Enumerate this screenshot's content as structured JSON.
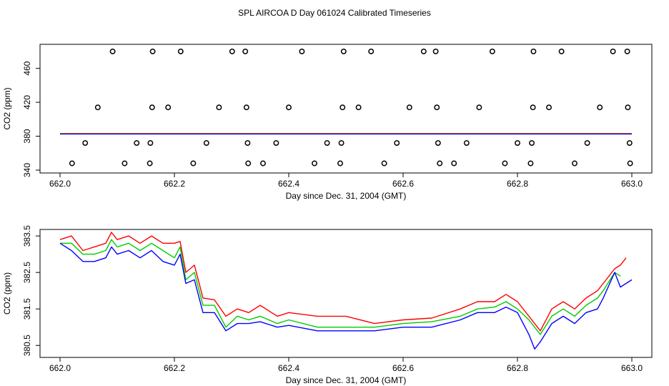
{
  "figure_title": "SPL AIRCOA D  Day 061024  Calibrated Timeseries",
  "chart_data": [
    {
      "type": "scatter",
      "xlabel": "Day since Dec. 31, 2004 (GMT)",
      "ylabel": "CO2 (ppm)",
      "xlim": [
        662.0,
        663.0
      ],
      "ylim": [
        340,
        485
      ],
      "xticks": [
        "662.0",
        "662.2",
        "662.4",
        "662.6",
        "662.8",
        "663.0"
      ],
      "xtick_values": [
        662.0,
        662.2,
        662.4,
        662.6,
        662.8,
        663.0
      ],
      "yticks": [
        "340",
        "380",
        "420",
        "460"
      ],
      "ytick_values": [
        340,
        380,
        420,
        460
      ],
      "points": [
        [
          662.092,
          480
        ],
        [
          662.162,
          480
        ],
        [
          662.211,
          480
        ],
        [
          662.301,
          480
        ],
        [
          662.324,
          480
        ],
        [
          662.423,
          480
        ],
        [
          662.496,
          480
        ],
        [
          662.544,
          480
        ],
        [
          662.636,
          480
        ],
        [
          662.657,
          480
        ],
        [
          662.756,
          480
        ],
        [
          662.828,
          480
        ],
        [
          662.877,
          480
        ],
        [
          662.967,
          480
        ],
        [
          662.992,
          480
        ],
        [
          662.066,
          414
        ],
        [
          662.161,
          414
        ],
        [
          662.189,
          414
        ],
        [
          662.278,
          414
        ],
        [
          662.326,
          414
        ],
        [
          662.4,
          414
        ],
        [
          662.494,
          414
        ],
        [
          662.522,
          414
        ],
        [
          662.611,
          414
        ],
        [
          662.659,
          414
        ],
        [
          662.733,
          414
        ],
        [
          662.827,
          414
        ],
        [
          662.855,
          414
        ],
        [
          662.944,
          414
        ],
        [
          662.993,
          414
        ],
        [
          662.044,
          372
        ],
        [
          662.134,
          372
        ],
        [
          662.158,
          372
        ],
        [
          662.256,
          372
        ],
        [
          662.328,
          372
        ],
        [
          662.378,
          372
        ],
        [
          662.467,
          372
        ],
        [
          662.492,
          372
        ],
        [
          662.589,
          372
        ],
        [
          662.661,
          372
        ],
        [
          662.711,
          372
        ],
        [
          662.8,
          372
        ],
        [
          662.825,
          372
        ],
        [
          662.922,
          372
        ],
        [
          662.996,
          372
        ],
        [
          662.021,
          348
        ],
        [
          662.113,
          348
        ],
        [
          662.157,
          348
        ],
        [
          662.233,
          348
        ],
        [
          662.329,
          348
        ],
        [
          662.355,
          348
        ],
        [
          662.445,
          348
        ],
        [
          662.49,
          348
        ],
        [
          662.567,
          348
        ],
        [
          662.664,
          348
        ],
        [
          662.689,
          348
        ],
        [
          662.778,
          348
        ],
        [
          662.823,
          348
        ],
        [
          662.9,
          348
        ],
        [
          662.997,
          348
        ]
      ],
      "lines": [
        {
          "name": "red",
          "color": "#ff0000",
          "y": 383.2
        },
        {
          "name": "green",
          "color": "#00cc00",
          "y": 382.7
        },
        {
          "name": "blue",
          "color": "#0000ff",
          "y": 382.5
        }
      ]
    },
    {
      "type": "line",
      "xlabel": "Day since Dec. 31, 2004 (GMT)",
      "ylabel": "CO2 (ppm)",
      "xlim": [
        662.0,
        663.0
      ],
      "ylim": [
        380.25,
        383.6
      ],
      "xticks": [
        "662.0",
        "662.2",
        "662.4",
        "662.6",
        "662.8",
        "663.0"
      ],
      "xtick_values": [
        662.0,
        662.2,
        662.4,
        662.6,
        662.8,
        663.0
      ],
      "yticks": [
        "380.5",
        "381.5",
        "382.5",
        "383.5"
      ],
      "ytick_values": [
        380.5,
        381.5,
        382.5,
        383.5
      ],
      "series": [
        {
          "name": "red",
          "color": "#ff0000",
          "x": [
            662.0,
            662.02,
            662.04,
            662.06,
            662.08,
            662.09,
            662.1,
            662.12,
            662.14,
            662.16,
            662.18,
            662.2,
            662.21,
            662.22,
            662.235,
            662.25,
            662.27,
            662.29,
            662.31,
            662.33,
            662.35,
            662.38,
            662.4,
            662.45,
            662.5,
            662.55,
            662.6,
            662.65,
            662.7,
            662.73,
            662.76,
            662.78,
            662.8,
            662.82,
            662.84,
            662.86,
            662.88,
            662.9,
            662.92,
            662.94,
            662.95,
            662.97,
            662.98,
            662.99
          ],
          "y": [
            383.4,
            383.5,
            383.1,
            383.2,
            383.3,
            383.6,
            383.4,
            383.5,
            383.3,
            383.5,
            383.3,
            383.3,
            383.35,
            382.5,
            382.7,
            381.8,
            381.75,
            381.3,
            381.5,
            381.4,
            381.6,
            381.3,
            381.4,
            381.3,
            381.3,
            381.1,
            381.2,
            381.25,
            381.5,
            381.7,
            381.7,
            381.9,
            381.7,
            381.3,
            380.9,
            381.5,
            381.7,
            381.5,
            381.8,
            382.0,
            382.2,
            382.6,
            382.7,
            382.9
          ]
        },
        {
          "name": "green",
          "color": "#00cc00",
          "x": [
            662.0,
            662.02,
            662.04,
            662.06,
            662.08,
            662.09,
            662.1,
            662.12,
            662.14,
            662.16,
            662.18,
            662.2,
            662.21,
            662.22,
            662.235,
            662.25,
            662.27,
            662.29,
            662.31,
            662.33,
            662.35,
            662.38,
            662.4,
            662.45,
            662.5,
            662.55,
            662.6,
            662.65,
            662.7,
            662.73,
            662.76,
            662.78,
            662.8,
            662.82,
            662.84,
            662.86,
            662.88,
            662.9,
            662.92,
            662.94,
            662.95,
            662.97,
            662.98
          ],
          "y": [
            383.3,
            383.3,
            383.0,
            383.0,
            383.1,
            383.4,
            383.2,
            383.3,
            383.1,
            383.3,
            383.1,
            382.9,
            383.2,
            382.3,
            382.5,
            381.6,
            381.6,
            381.0,
            381.3,
            381.2,
            381.3,
            381.1,
            381.2,
            381.0,
            381.0,
            381.0,
            381.1,
            381.15,
            381.3,
            381.5,
            381.55,
            381.7,
            381.5,
            381.2,
            380.8,
            381.3,
            381.5,
            381.3,
            381.6,
            381.8,
            382.0,
            382.5,
            382.4
          ]
        },
        {
          "name": "blue",
          "color": "#0000ff",
          "x": [
            662.0,
            662.02,
            662.04,
            662.06,
            662.08,
            662.09,
            662.1,
            662.12,
            662.14,
            662.16,
            662.18,
            662.2,
            662.21,
            662.22,
            662.235,
            662.25,
            662.27,
            662.29,
            662.31,
            662.33,
            662.35,
            662.38,
            662.4,
            662.45,
            662.5,
            662.55,
            662.6,
            662.65,
            662.7,
            662.73,
            662.76,
            662.78,
            662.8,
            662.82,
            662.83,
            662.84,
            662.86,
            662.88,
            662.9,
            662.92,
            662.94,
            662.95,
            662.97,
            662.98,
            663.0
          ],
          "y": [
            383.3,
            383.1,
            382.8,
            382.8,
            382.9,
            383.2,
            383.0,
            383.1,
            382.9,
            383.1,
            382.8,
            382.7,
            383.0,
            382.2,
            382.3,
            381.4,
            381.4,
            380.9,
            381.1,
            381.1,
            381.15,
            381.0,
            381.05,
            380.9,
            380.9,
            380.9,
            381.0,
            381.0,
            381.2,
            381.4,
            381.4,
            381.55,
            381.4,
            380.8,
            380.4,
            380.6,
            381.1,
            381.3,
            381.1,
            381.4,
            381.5,
            381.8,
            382.5,
            382.1,
            382.3
          ]
        }
      ]
    }
  ]
}
